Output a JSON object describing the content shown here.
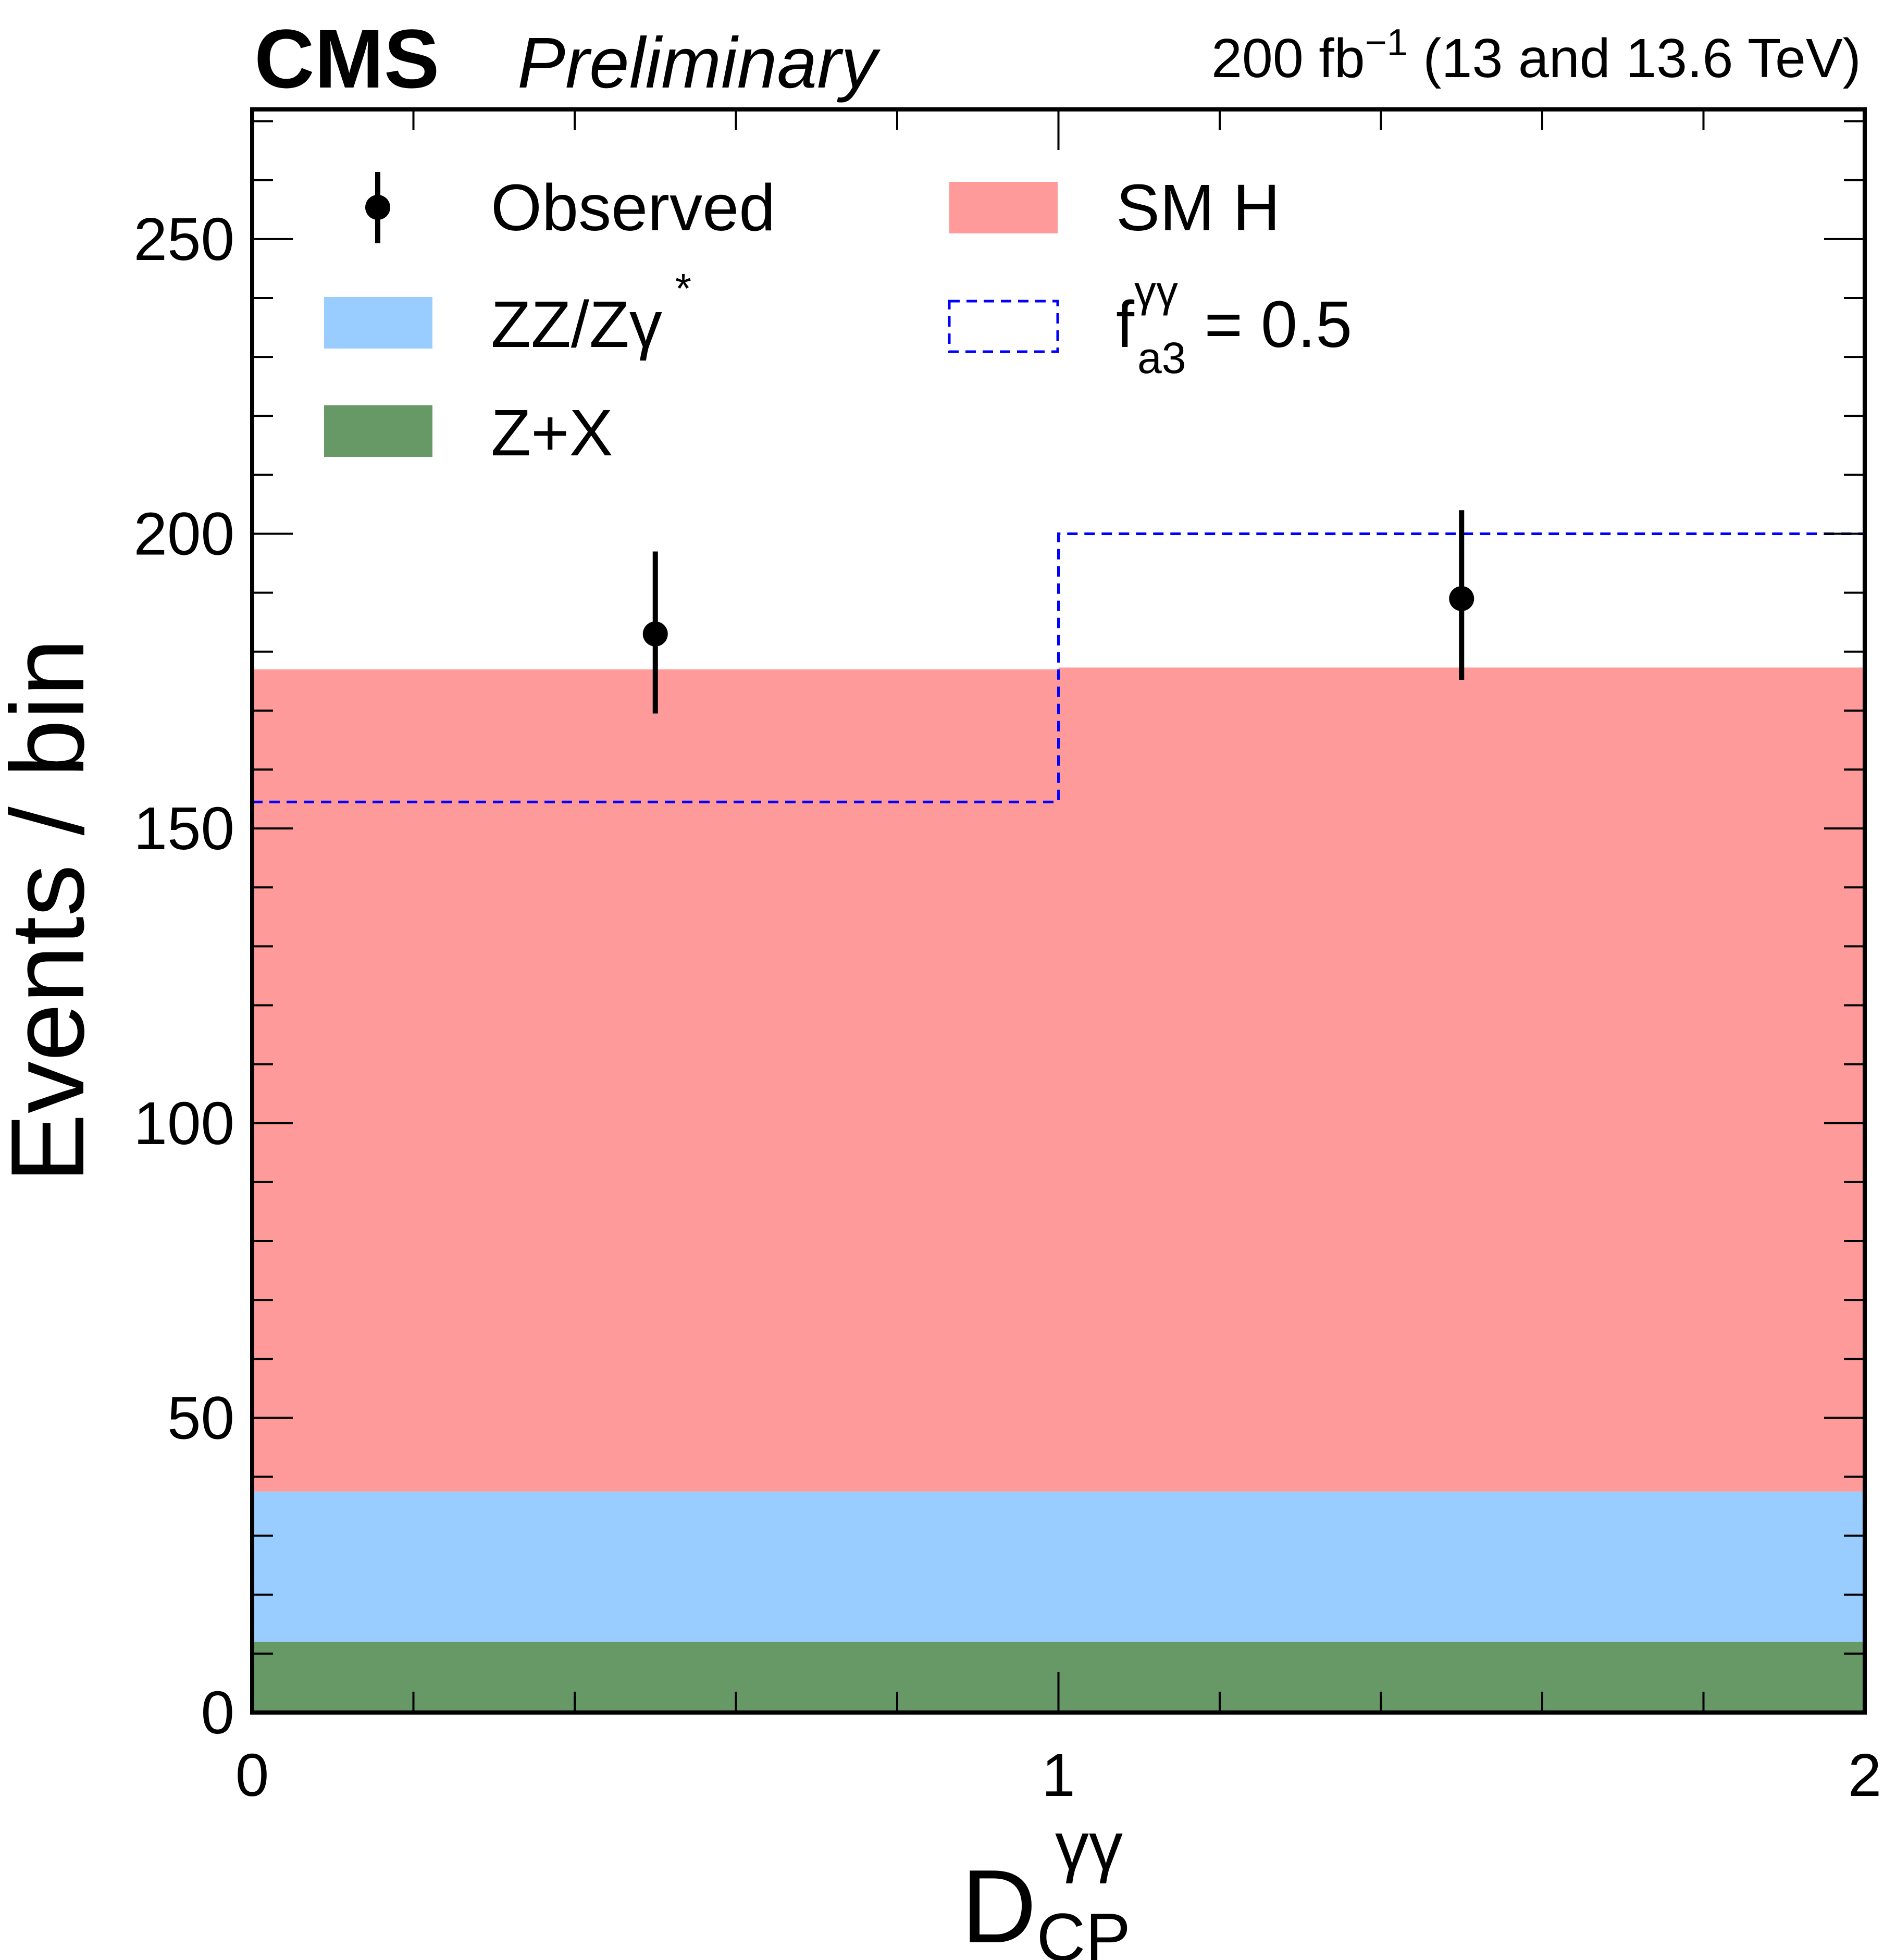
{
  "header": {
    "experiment": "CMS",
    "status": "Preliminary",
    "lumi": "200 fb",
    "lumi_exp": "−1",
    "energy": " (13 and 13.6 TeV)"
  },
  "axes": {
    "ylabel": "Events / bin",
    "xlabel_main": "D",
    "xlabel_sub": "CP",
    "xlabel_sup": "γγ"
  },
  "legend": {
    "observed": "Observed",
    "zz": "ZZ/Zγ",
    "zz_star": "*",
    "zx": "Z+X",
    "smh": "SM H",
    "fa3_main": "f",
    "fa3_sub": "a3",
    "fa3_sup": "γγ",
    "fa3_value": " = 0.5"
  },
  "colors": {
    "smh": "#ff9a9a",
    "zz": "#99ccff",
    "zx": "#669966",
    "fa3": "#0000ff",
    "observed": "#000000"
  },
  "chart_data": {
    "type": "bar",
    "stacked": true,
    "bins": [
      [
        0,
        1
      ],
      [
        1,
        2
      ]
    ],
    "xlim": [
      0,
      2
    ],
    "ylim": [
      0,
      272
    ],
    "xticks": [
      0,
      1,
      2
    ],
    "yticks": [
      0,
      50,
      100,
      150,
      200,
      250
    ],
    "series": [
      {
        "name": "Z+X",
        "values": [
          12,
          12
        ]
      },
      {
        "name": "ZZ/Zγ*",
        "values": [
          25.5,
          25.5
        ]
      },
      {
        "name": "SM H",
        "values": [
          139.5,
          139.8
        ]
      }
    ],
    "fa3_line": {
      "name": "f_a3^γγ = 0.5",
      "values": [
        154.5,
        200
      ]
    },
    "observed": {
      "name": "Observed",
      "x": [
        0.5,
        1.5
      ],
      "y": [
        183,
        189
      ],
      "err_low": [
        13.5,
        13.8
      ],
      "err_high": [
        14,
        15
      ]
    },
    "legend_position": "top"
  }
}
